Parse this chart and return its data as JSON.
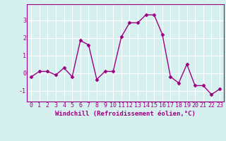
{
  "x": [
    0,
    1,
    2,
    3,
    4,
    5,
    6,
    7,
    8,
    9,
    10,
    11,
    12,
    13,
    14,
    15,
    16,
    17,
    18,
    19,
    20,
    21,
    22,
    23
  ],
  "y": [
    -0.2,
    0.1,
    0.1,
    -0.1,
    0.3,
    -0.2,
    1.85,
    1.6,
    -0.35,
    0.1,
    0.1,
    2.05,
    2.85,
    2.85,
    3.3,
    3.3,
    2.2,
    -0.2,
    -0.55,
    0.5,
    -0.7,
    -0.7,
    -1.2,
    -0.9
  ],
  "line_color": "#9b0080",
  "marker": "D",
  "marker_size": 2.5,
  "linewidth": 1.0,
  "xlabel": "Windchill (Refroidissement éolien,°C)",
  "xlabel_color": "#9b0080",
  "xlabel_fontsize": 6.5,
  "xtick_labels": [
    "0",
    "1",
    "2",
    "3",
    "4",
    "5",
    "6",
    "7",
    "8",
    "9",
    "10",
    "11",
    "12",
    "13",
    "14",
    "15",
    "16",
    "17",
    "18",
    "19",
    "20",
    "21",
    "22",
    "23"
  ],
  "ytick_values": [
    -1,
    0,
    1,
    2,
    3
  ],
  "ylim": [
    -1.6,
    3.9
  ],
  "xlim": [
    -0.5,
    23.5
  ],
  "background_color": "#d6f0f0",
  "grid_color": "#ffffff",
  "tick_color": "#9b0080",
  "tick_fontsize": 6.0,
  "spine_color": "#9b0080"
}
